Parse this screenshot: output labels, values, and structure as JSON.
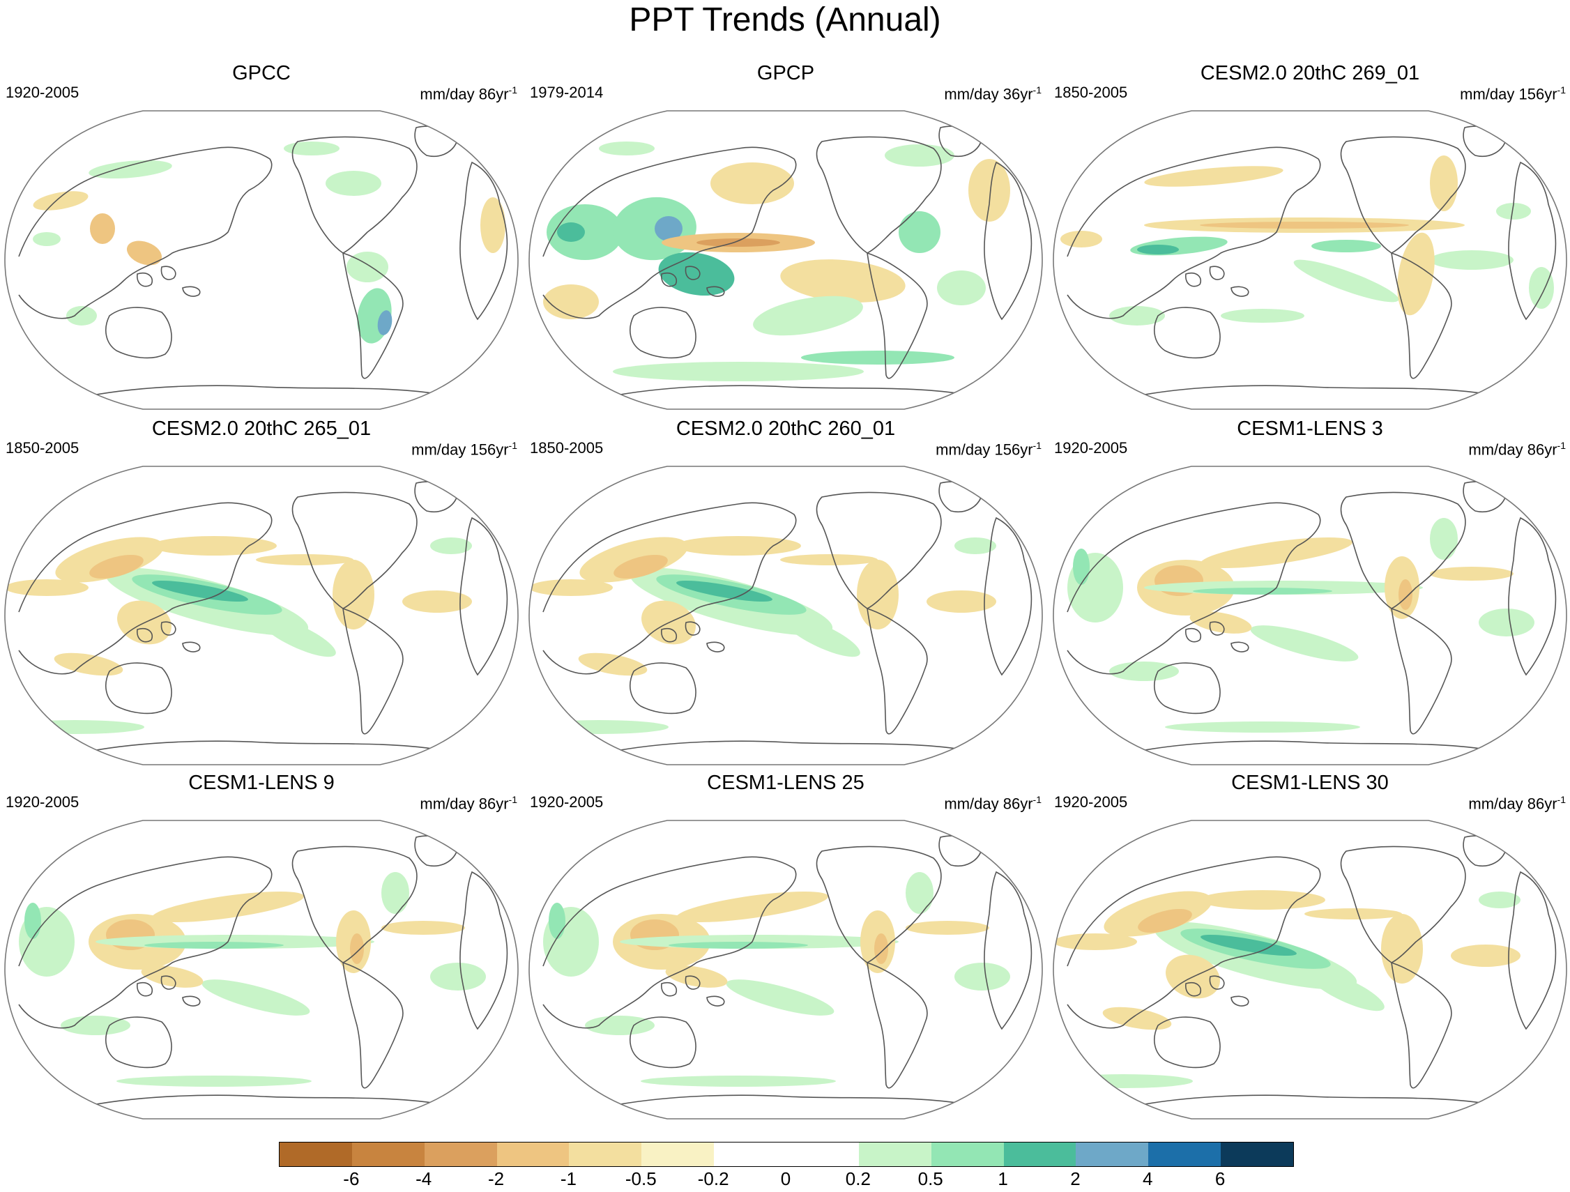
{
  "figure_title": "PPT Trends (Annual)",
  "panels": [
    {
      "title": "GPCC",
      "period": "1920-2005",
      "units": "mm/day 86yr",
      "units_exp": "-1",
      "pattern": "observed_land"
    },
    {
      "title": "GPCP",
      "period": "1979-2014",
      "units": "mm/day 36yr",
      "units_exp": "-1",
      "pattern": "observed_global"
    },
    {
      "title": "CESM2.0 20thC 269_01",
      "period": "1850-2005",
      "units": "mm/day 156yr",
      "units_exp": "-1",
      "pattern": "model_eq_dry"
    },
    {
      "title": "CESM2.0 20thC 265_01",
      "period": "1850-2005",
      "units": "mm/day 156yr",
      "units_exp": "-1",
      "pattern": "model_spcz_wet"
    },
    {
      "title": "CESM2.0 20thC 260_01",
      "period": "1850-2005",
      "units": "mm/day 156yr",
      "units_exp": "-1",
      "pattern": "model_spcz_wet"
    },
    {
      "title": "CESM1-LENS 3",
      "period": "1920-2005",
      "units": "mm/day 86yr",
      "units_exp": "-1",
      "pattern": "model_mixed"
    },
    {
      "title": "CESM1-LENS 9",
      "period": "1920-2005",
      "units": "mm/day 86yr",
      "units_exp": "-1",
      "pattern": "model_mixed"
    },
    {
      "title": "CESM1-LENS 25",
      "period": "1920-2005",
      "units": "mm/day 86yr",
      "units_exp": "-1",
      "pattern": "model_mixed"
    },
    {
      "title": "CESM1-LENS 30",
      "period": "1920-2005",
      "units": "mm/day 86yr",
      "units_exp": "-1",
      "pattern": "model_spcz_wet"
    }
  ],
  "colorbar": {
    "colors": [
      "#b06a28",
      "#c8843f",
      "#dba05e",
      "#eec581",
      "#f3df9f",
      "#f9f2c4",
      "#ffffff",
      "#ffffff",
      "#c8f4c8",
      "#93e6b4",
      "#4bbd9b",
      "#6ea8c8",
      "#1c6fa9",
      "#0c3a5a"
    ],
    "labels": [
      "-6",
      "-4",
      "-2",
      "-1",
      "-0.5",
      "-0.2",
      "0",
      "0.2",
      "0.5",
      "1",
      "2",
      "4",
      "6"
    ]
  },
  "legend_colors": {
    "dry_strong": "#dba05e",
    "dry": "#eec581",
    "dry_light": "#f3df9f",
    "wet_light": "#c8f4c8",
    "wet": "#93e6b4",
    "wet_strong": "#4bbd9b",
    "wet_max": "#6ea8c8",
    "coast": "#555555",
    "frame": "#777777"
  }
}
